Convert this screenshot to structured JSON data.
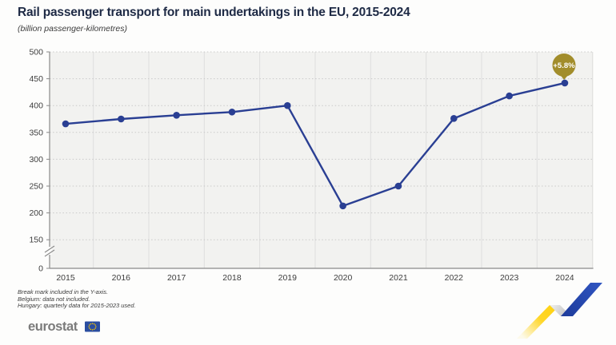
{
  "header": {
    "title": "Rail passenger transport for main undertakings in the EU, 2015-2024",
    "subtitle": "(billion passenger-kilometres)"
  },
  "chart_data": {
    "type": "line",
    "x": [
      "2015",
      "2016",
      "2017",
      "2018",
      "2019",
      "2020",
      "2021",
      "2022",
      "2023",
      "2024"
    ],
    "series": [
      {
        "name": "Rail passenger transport (billion passenger-kilometres)",
        "values": [
          366,
          375,
          382,
          388,
          400,
          213,
          250,
          376,
          418,
          442
        ]
      }
    ],
    "title": "Rail passenger transport for main undertakings in the EU, 2015-2024",
    "xlabel": "",
    "ylabel": "(billion passenger-kilometres)",
    "ylim": [
      0,
      500
    ],
    "yticks": [
      0,
      150,
      200,
      250,
      300,
      350,
      400,
      450,
      500
    ],
    "y_axis_break": true,
    "grid": "horizontal dotted gridlines, vertical solid category separators, legend none",
    "line_color": "#2a3f93",
    "annotation": {
      "text": "+5.8%",
      "applies_to_x": "2024",
      "badge_color": "#a28d2b",
      "text_color": "#ffffff"
    }
  },
  "footnotes": [
    "Break mark included in the Y-axis.",
    "Belgium: data not included.",
    "Hungary: quarterly data for 2015-2023 used."
  ],
  "branding": {
    "logo_text": "eurostat",
    "flag_color": "#2a4da0",
    "star_color": "#ffcc00",
    "ribbon_yellow": "#ffd211",
    "ribbon_gray": "#cfcfcf",
    "ribbon_blue": "#2746a8"
  },
  "colors": {
    "page_bg": "#fdfdfc",
    "plot_bg": "#f2f2f0",
    "grid_dotted": "#c9c9c9",
    "grid_vertical": "#dedede",
    "axis": "#8a8a8a",
    "title_text": "#1e2a45",
    "tick_text": "#3d3d3d"
  }
}
